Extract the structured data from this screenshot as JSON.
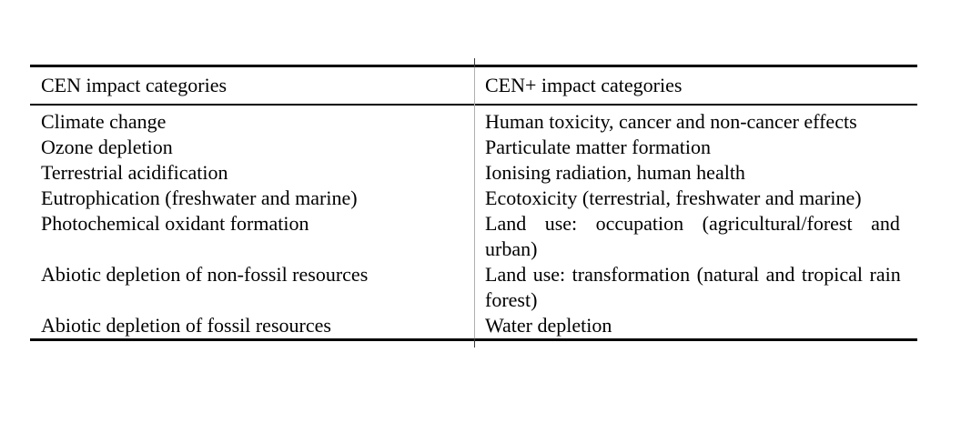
{
  "table": {
    "headers": {
      "cen": "CEN impact categories",
      "cen_plus": "CEN+ impact categories"
    },
    "rows": [
      {
        "cen": "Climate change",
        "cen_plus": "Human toxicity, cancer and non-cancer effects"
      },
      {
        "cen": "Ozone depletion",
        "cen_plus": "Particulate matter formation"
      },
      {
        "cen": "Terrestrial acidification",
        "cen_plus": "Ionising radiation, human health"
      },
      {
        "cen": "Eutrophication (freshwater and marine)",
        "cen_plus": "Ecotoxicity (terrestrial, freshwater and marine)"
      },
      {
        "cen": "Photochemical oxidant formation",
        "cen_plus": "Land use: occupation (agricultural/forest and\nurban)"
      },
      {
        "cen": "Abiotic depletion of non-fossil resources",
        "cen_plus": "Land use: transformation (natural and tropical rain\nforest)"
      },
      {
        "cen": "Abiotic depletion of fossil resources",
        "cen_plus": "Water depletion"
      }
    ],
    "colors": {
      "rule": "#000000",
      "column_divider": "#b0b0b0",
      "text": "#000000",
      "background": "#ffffff"
    }
  }
}
